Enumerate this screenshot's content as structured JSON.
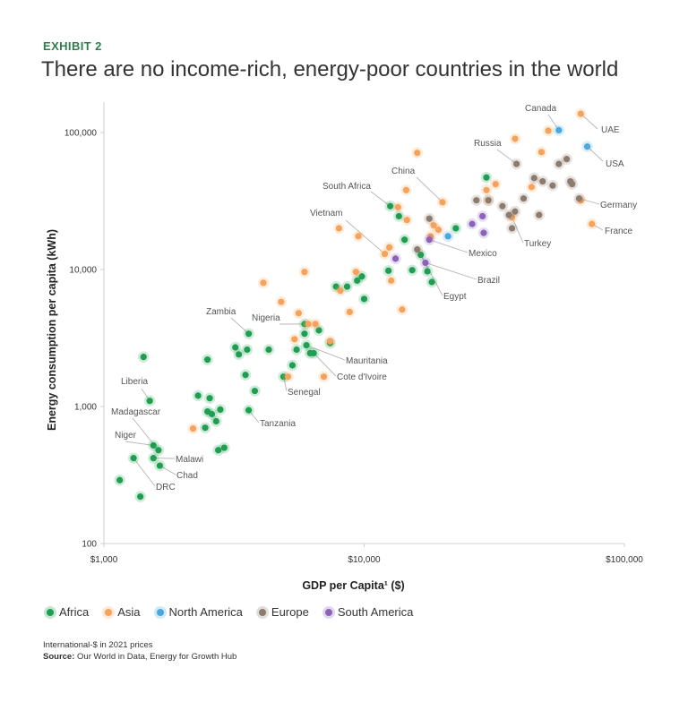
{
  "header": {
    "exhibit": "EXHIBIT 2",
    "title": "There are no income-rich, energy-poor countries in the world"
  },
  "footer": {
    "note": "International-$ in 2021 prices",
    "source_label": "Source:",
    "source_text": "Our World in Data, Energy for Growth Hub"
  },
  "colors": {
    "Africa": "#1f9e52",
    "Asia": "#f5a25a",
    "North America": "#4aa8dc",
    "Europe": "#8c7b6f",
    "South America": "#8b63b8"
  },
  "chart_data": {
    "type": "scatter",
    "title": "There are no income-rich, energy-poor countries in the world",
    "xlabel": "GDP per Capita¹ ($)",
    "ylabel": "Energy consumption per capita (kWh)",
    "xscale": "log",
    "yscale": "log",
    "xlim": [
      1000,
      100000
    ],
    "ylim": [
      100,
      200000
    ],
    "xticks": [
      {
        "value": 1000,
        "label": "$1,000"
      },
      {
        "value": 10000,
        "label": "$10,000"
      },
      {
        "value": 100000,
        "label": "$100,000"
      }
    ],
    "yticks": [
      {
        "value": 100,
        "label": "100"
      },
      {
        "value": 1000,
        "label": "1,000"
      },
      {
        "value": 10000,
        "label": "10,000"
      },
      {
        "value": 100000,
        "label": "100,000"
      }
    ],
    "legend_position": "bottom",
    "series": [
      {
        "name": "Africa",
        "points": [
          [
            1150,
            290
          ],
          [
            1300,
            420
          ],
          [
            1380,
            220
          ],
          [
            1420,
            2300
          ],
          [
            1500,
            1100
          ],
          [
            1550,
            520
          ],
          [
            1550,
            420
          ],
          [
            1620,
            480
          ],
          [
            1640,
            370
          ],
          [
            2300,
            1200
          ],
          [
            2450,
            700
          ],
          [
            2500,
            920
          ],
          [
            2500,
            2200
          ],
          [
            2550,
            1150
          ],
          [
            2600,
            880
          ],
          [
            2700,
            780
          ],
          [
            2750,
            480
          ],
          [
            2800,
            950
          ],
          [
            2900,
            500
          ],
          [
            3200,
            2700
          ],
          [
            3300,
            2400
          ],
          [
            3500,
            1700
          ],
          [
            3550,
            2600
          ],
          [
            3600,
            3400
          ],
          [
            3600,
            940
          ],
          [
            3800,
            1300
          ],
          [
            4300,
            2600
          ],
          [
            4900,
            1650
          ],
          [
            5300,
            2000
          ],
          [
            5500,
            2600
          ],
          [
            5900,
            3400
          ],
          [
            5900,
            4000
          ],
          [
            6000,
            2800
          ],
          [
            6200,
            2450
          ],
          [
            6400,
            2450
          ],
          [
            6700,
            3600
          ],
          [
            7400,
            2900
          ],
          [
            7800,
            7500
          ],
          [
            8600,
            7500
          ],
          [
            9400,
            8300
          ],
          [
            9800,
            8900
          ],
          [
            10000,
            6100
          ],
          [
            12400,
            9800
          ],
          [
            12600,
            29000
          ],
          [
            13600,
            24500
          ],
          [
            14300,
            16500
          ],
          [
            15300,
            9900
          ],
          [
            16500,
            12800
          ],
          [
            17500,
            9700
          ],
          [
            18200,
            8100
          ],
          [
            22500,
            20000
          ],
          [
            29500,
            47000
          ]
        ]
      },
      {
        "name": "Asia",
        "points": [
          [
            2200,
            690
          ],
          [
            4100,
            8000
          ],
          [
            4800,
            5800
          ],
          [
            5100,
            1650
          ],
          [
            5400,
            3100
          ],
          [
            5600,
            4800
          ],
          [
            5900,
            9600
          ],
          [
            6100,
            4000
          ],
          [
            6500,
            4000
          ],
          [
            7000,
            1650
          ],
          [
            7400,
            3000
          ],
          [
            8000,
            20000
          ],
          [
            8100,
            7000
          ],
          [
            8800,
            4900
          ],
          [
            9300,
            9600
          ],
          [
            9500,
            17500
          ],
          [
            12000,
            13000
          ],
          [
            12500,
            14500
          ],
          [
            12700,
            8300
          ],
          [
            13500,
            28500
          ],
          [
            14000,
            5100
          ],
          [
            14500,
            38000
          ],
          [
            14600,
            23000
          ],
          [
            16000,
            71000
          ],
          [
            18000,
            17500
          ],
          [
            18500,
            21000
          ],
          [
            19300,
            19500
          ],
          [
            20000,
            31000
          ],
          [
            29500,
            38000
          ],
          [
            30000,
            32000
          ],
          [
            32000,
            42000
          ],
          [
            37000,
            24000
          ],
          [
            38000,
            90000
          ],
          [
            44000,
            40000
          ],
          [
            48000,
            72000
          ],
          [
            51000,
            103000
          ],
          [
            68000,
            137000
          ],
          [
            68000,
            32000
          ],
          [
            75000,
            21500
          ]
        ]
      },
      {
        "name": "North America",
        "points": [
          [
            56000,
            104000
          ],
          [
            72000,
            79000
          ],
          [
            21000,
            17500
          ]
        ]
      },
      {
        "name": "Europe",
        "points": [
          [
            16000,
            14000
          ],
          [
            17800,
            23500
          ],
          [
            27000,
            32000
          ],
          [
            30000,
            32000
          ],
          [
            34000,
            29000
          ],
          [
            36000,
            25000
          ],
          [
            37000,
            20000
          ],
          [
            38000,
            26500
          ],
          [
            38500,
            59000
          ],
          [
            41000,
            33000
          ],
          [
            45000,
            46500
          ],
          [
            47000,
            25000
          ],
          [
            48500,
            44000
          ],
          [
            53000,
            41000
          ],
          [
            56000,
            59000
          ],
          [
            60000,
            64000
          ],
          [
            62000,
            44000
          ],
          [
            63000,
            42000
          ],
          [
            67000,
            33000
          ]
        ]
      },
      {
        "name": "South America",
        "points": [
          [
            13200,
            12000
          ],
          [
            17200,
            11200
          ],
          [
            17800,
            16500
          ],
          [
            26000,
            21500
          ],
          [
            28500,
            24500
          ],
          [
            28800,
            18500
          ]
        ]
      }
    ],
    "annotations": [
      {
        "label": "Canada",
        "x": 56000,
        "y": 104000,
        "anchor": "start",
        "tx": 586,
        "ty": 124,
        "lx": 612,
        "ly": 128
      },
      {
        "label": "UAE",
        "x": 68000,
        "y": 137000,
        "anchor": "start",
        "tx": 671,
        "ty": 148,
        "lx": 667,
        "ly": 144
      },
      {
        "label": "USA",
        "x": 72000,
        "y": 79000,
        "anchor": "start",
        "tx": 676,
        "ty": 186,
        "lx": 673,
        "ly": 180
      },
      {
        "label": "Russia",
        "x": 38500,
        "y": 59000,
        "anchor": "start",
        "tx": 529,
        "ty": 163,
        "lx": 555,
        "ly": 167
      },
      {
        "label": "China",
        "x": 20000,
        "y": 31000,
        "anchor": "start",
        "tx": 437,
        "ty": 194,
        "lx": 465,
        "ly": 198
      },
      {
        "label": "South Africa",
        "x": 12600,
        "y": 29000,
        "anchor": "start",
        "tx": 360,
        "ty": 211,
        "lx": 414,
        "ly": 214
      },
      {
        "label": "Germany",
        "x": 67000,
        "y": 33000,
        "anchor": "start",
        "tx": 670,
        "ty": 232,
        "lx": 669,
        "ly": 228
      },
      {
        "label": "Vietnam",
        "x": 12000,
        "y": 13000,
        "anchor": "start",
        "tx": 346,
        "ty": 241,
        "lx": 386,
        "ly": 246
      },
      {
        "label": "France",
        "x": 75000,
        "y": 21500,
        "anchor": "start",
        "tx": 675,
        "ty": 261,
        "lx": 673,
        "ly": 257
      },
      {
        "label": "Turkey",
        "x": 37000,
        "y": 24000,
        "anchor": "start",
        "tx": 585,
        "ty": 275,
        "lx": 584,
        "ly": 271
      },
      {
        "label": "Mexico",
        "x": 17800,
        "y": 16500,
        "anchor": "start",
        "tx": 523,
        "ty": 286,
        "lx": 522,
        "ly": 282
      },
      {
        "label": "Brazil",
        "x": 17200,
        "y": 11200,
        "anchor": "start",
        "tx": 533,
        "ty": 316,
        "lx": 532,
        "ly": 312
      },
      {
        "label": "Egypt",
        "x": 16500,
        "y": 12800,
        "anchor": "start",
        "tx": 495,
        "ty": 334,
        "lx": 494,
        "ly": 330
      },
      {
        "label": "Zambia",
        "x": 3600,
        "y": 3400,
        "anchor": "start",
        "tx": 230,
        "ty": 351,
        "lx": 258,
        "ly": 355
      },
      {
        "label": "Nigeria",
        "x": 5900,
        "y": 4000,
        "anchor": "start",
        "tx": 281,
        "ty": 358,
        "lx": 312,
        "ly": 362
      },
      {
        "label": "Mauritania",
        "x": 6000,
        "y": 2800,
        "anchor": "start",
        "tx": 386,
        "ty": 406,
        "lx": 385,
        "ly": 402
      },
      {
        "label": "Cote d'Ivoire",
        "x": 6400,
        "y": 2450,
        "anchor": "start",
        "tx": 376,
        "ty": 424,
        "lx": 375,
        "ly": 420
      },
      {
        "label": "Liberia",
        "x": 1500,
        "y": 1100,
        "anchor": "start",
        "tx": 135,
        "ty": 429,
        "lx": 158,
        "ly": 434
      },
      {
        "label": "Senegal",
        "x": 4900,
        "y": 1650,
        "anchor": "start",
        "tx": 321,
        "ty": 441,
        "lx": 320,
        "ly": 437
      },
      {
        "label": "Madagascar",
        "x": 1620,
        "y": 480,
        "anchor": "start",
        "tx": 124,
        "ty": 463,
        "lx": 148,
        "ly": 467
      },
      {
        "label": "Tanzania",
        "x": 3600,
        "y": 940,
        "anchor": "start",
        "tx": 290,
        "ty": 476,
        "lx": 289,
        "ly": 472
      },
      {
        "label": "Niger",
        "x": 1550,
        "y": 520,
        "anchor": "start",
        "tx": 128,
        "ty": 489,
        "lx": 140,
        "ly": 493
      },
      {
        "label": "Malawi",
        "x": 1550,
        "y": 420,
        "anchor": "start",
        "tx": 196,
        "ty": 516,
        "lx": 195,
        "ly": 512
      },
      {
        "label": "Chad",
        "x": 1640,
        "y": 370,
        "anchor": "start",
        "tx": 197,
        "ty": 534,
        "lx": 196,
        "ly": 530
      },
      {
        "label": "DRC",
        "x": 1300,
        "y": 420,
        "anchor": "start",
        "tx": 174,
        "ty": 547,
        "lx": 173,
        "ly": 543
      }
    ]
  }
}
